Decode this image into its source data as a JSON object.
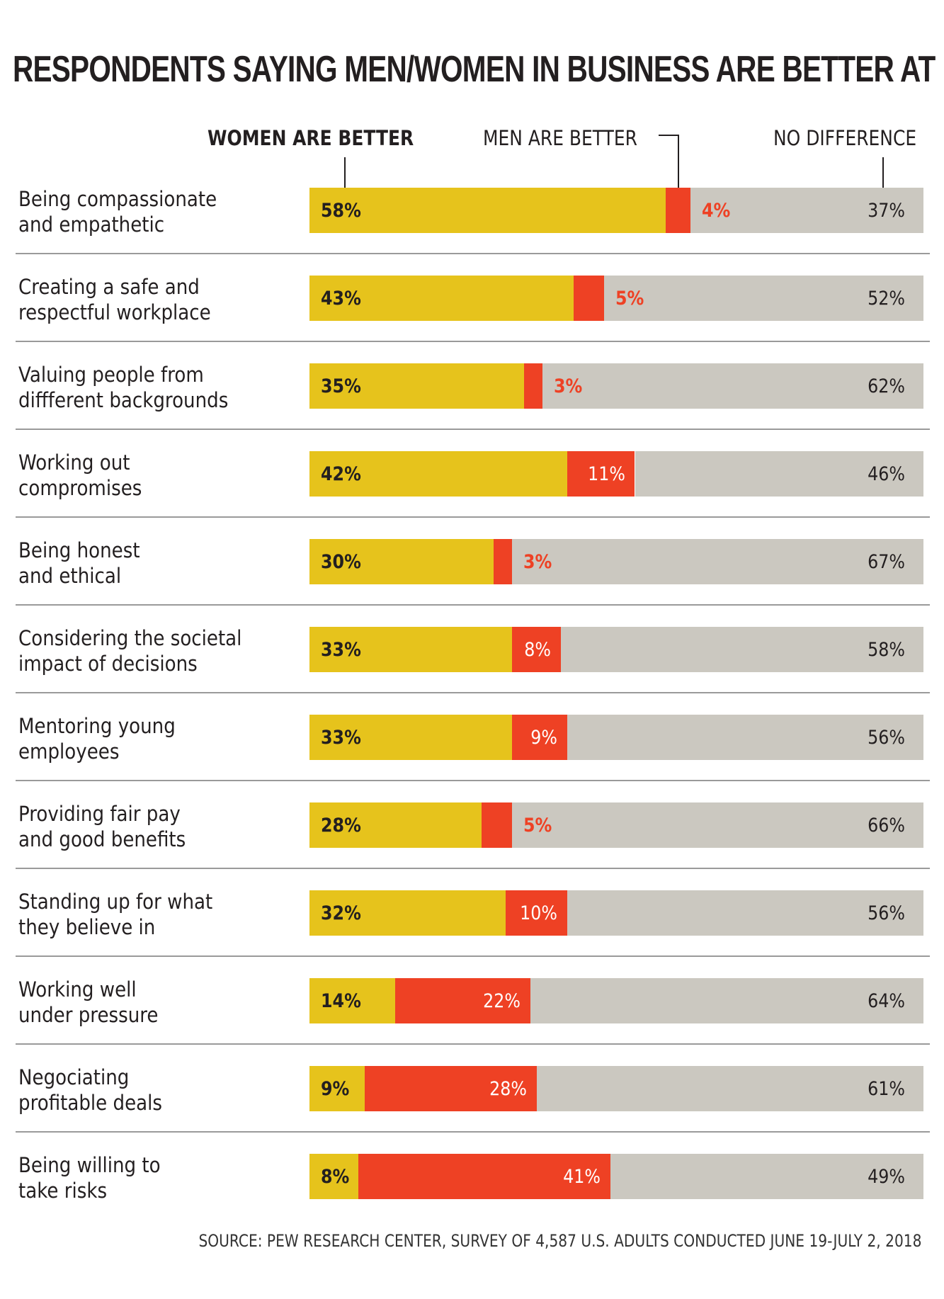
{
  "chart_data": {
    "type": "bar",
    "orientation": "horizontal",
    "stacked": true,
    "title": "RESPONDENTS SAYING MEN/WOMEN IN BUSINESS ARE BETTER AT ...",
    "legend": [
      "WOMEN ARE BETTER",
      "MEN ARE BETTER",
      "NO DIFFERENCE"
    ],
    "legend_placement": "top",
    "categories": [
      "Being compassionate\nand empathetic",
      "Creating a safe and\nrespectful workplace",
      "Valuing people from\ndiffferent backgrounds",
      "Working out\ncompromises",
      "Being honest\nand ethical",
      "Considering the societal\nimpact of decisions",
      "Mentoring young\nemployees",
      "Providing fair pay\nand good benefits",
      "Standing up for what\nthey believe in",
      "Working well\nunder pressure",
      "Negociating\nprofitable deals",
      "Being willing to\ntake risks"
    ],
    "series": [
      {
        "name": "WOMEN ARE BETTER",
        "color": "#E6C31C",
        "values": [
          58,
          43,
          35,
          42,
          30,
          33,
          33,
          28,
          32,
          14,
          9,
          8
        ]
      },
      {
        "name": "MEN ARE BETTER",
        "color": "#EE4124",
        "values": [
          4,
          5,
          3,
          11,
          3,
          8,
          9,
          5,
          10,
          22,
          28,
          41
        ]
      },
      {
        "name": "NO DIFFERENCE",
        "color": "#CBC8C0",
        "values": [
          37,
          52,
          62,
          46,
          67,
          58,
          56,
          66,
          56,
          64,
          61,
          49
        ]
      }
    ],
    "value_suffix": "%",
    "xlim": [
      0,
      100
    ],
    "grid": false,
    "source": "SOURCE: PEW RESEARCH CENTER, SURVEY OF 4,587 U.S. ADULTS CONDUCTED JUNE 19-JULY 2, 2018"
  },
  "colors": {
    "text": "#231F20",
    "men_label_outside": "#EE4124",
    "separator": "#9A9A9A"
  }
}
